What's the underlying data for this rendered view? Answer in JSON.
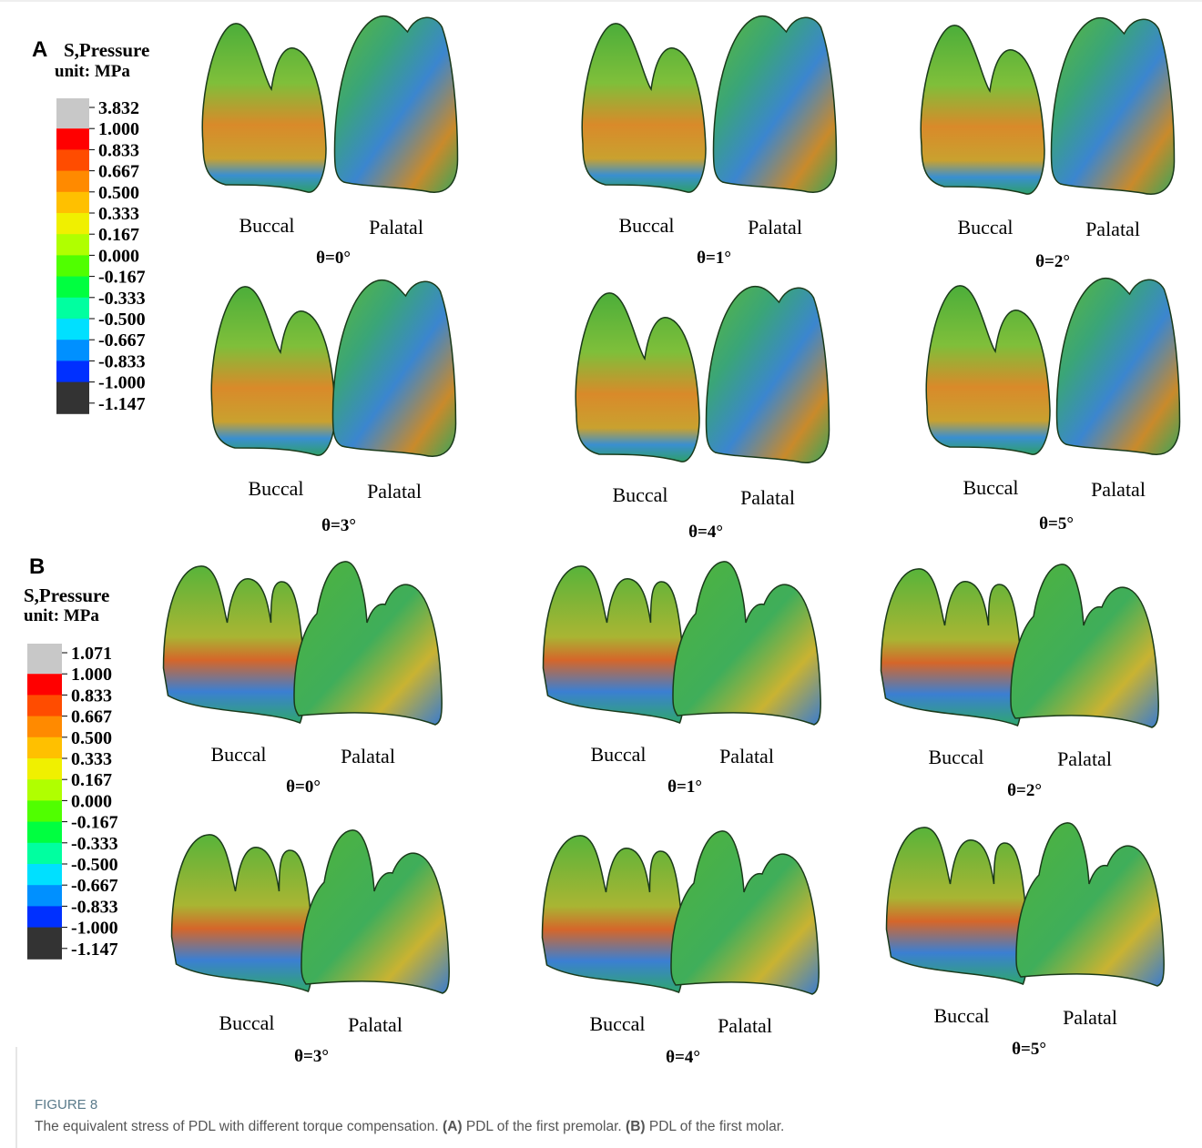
{
  "panels": [
    {
      "label": "A",
      "legend_title": "S,Pressure",
      "legend_unit": "unit: MPa",
      "legend_labels": [
        "3.832",
        "1.000",
        "0.833",
        "0.667",
        "0.500",
        "0.333",
        "0.167",
        "0.000",
        "-0.167",
        "-0.333",
        "-0.500",
        "-0.667",
        "-0.833",
        "-1.000",
        "-1.147"
      ],
      "views": [
        {
          "left": "Buccal",
          "right": "Palatal",
          "angle": "θ=0°"
        },
        {
          "left": "Buccal",
          "right": "Palatal",
          "angle": "θ=1°"
        },
        {
          "left": "Buccal",
          "right": "Palatal",
          "angle": "θ=2°"
        },
        {
          "left": "Buccal",
          "right": "Palatal",
          "angle": "θ=3°"
        },
        {
          "left": "Buccal",
          "right": "Palatal",
          "angle": "θ=4°"
        },
        {
          "left": "Buccal",
          "right": "Palatal",
          "angle": "θ=5°"
        }
      ]
    },
    {
      "label": "B",
      "legend_title": "S,Pressure",
      "legend_unit": "unit: MPa",
      "legend_labels": [
        "1.071",
        "1.000",
        "0.833",
        "0.667",
        "0.500",
        "0.333",
        "0.167",
        "0.000",
        "-0.167",
        "-0.333",
        "-0.500",
        "-0.667",
        "-0.833",
        "-1.000",
        "-1.147"
      ],
      "views": [
        {
          "left": "Buccal",
          "right": "Palatal",
          "angle": "θ=0°"
        },
        {
          "left": "Buccal",
          "right": "Palatal",
          "angle": "θ=1°"
        },
        {
          "left": "Buccal",
          "right": "Palatal",
          "angle": "θ=2°"
        },
        {
          "left": "Buccal",
          "right": "Palatal",
          "angle": "θ=3°"
        },
        {
          "left": "Buccal",
          "right": "Palatal",
          "angle": "θ=4°"
        },
        {
          "left": "Buccal",
          "right": "Palatal",
          "angle": "θ=5°"
        }
      ]
    }
  ],
  "caption": {
    "figure": "FIGURE 8",
    "text": [
      "The equivalent stress of PDL with different torque compensation. ",
      "(A)",
      " PDL of the first premolar. ",
      "(B)",
      " PDL of the first molar."
    ]
  }
}
